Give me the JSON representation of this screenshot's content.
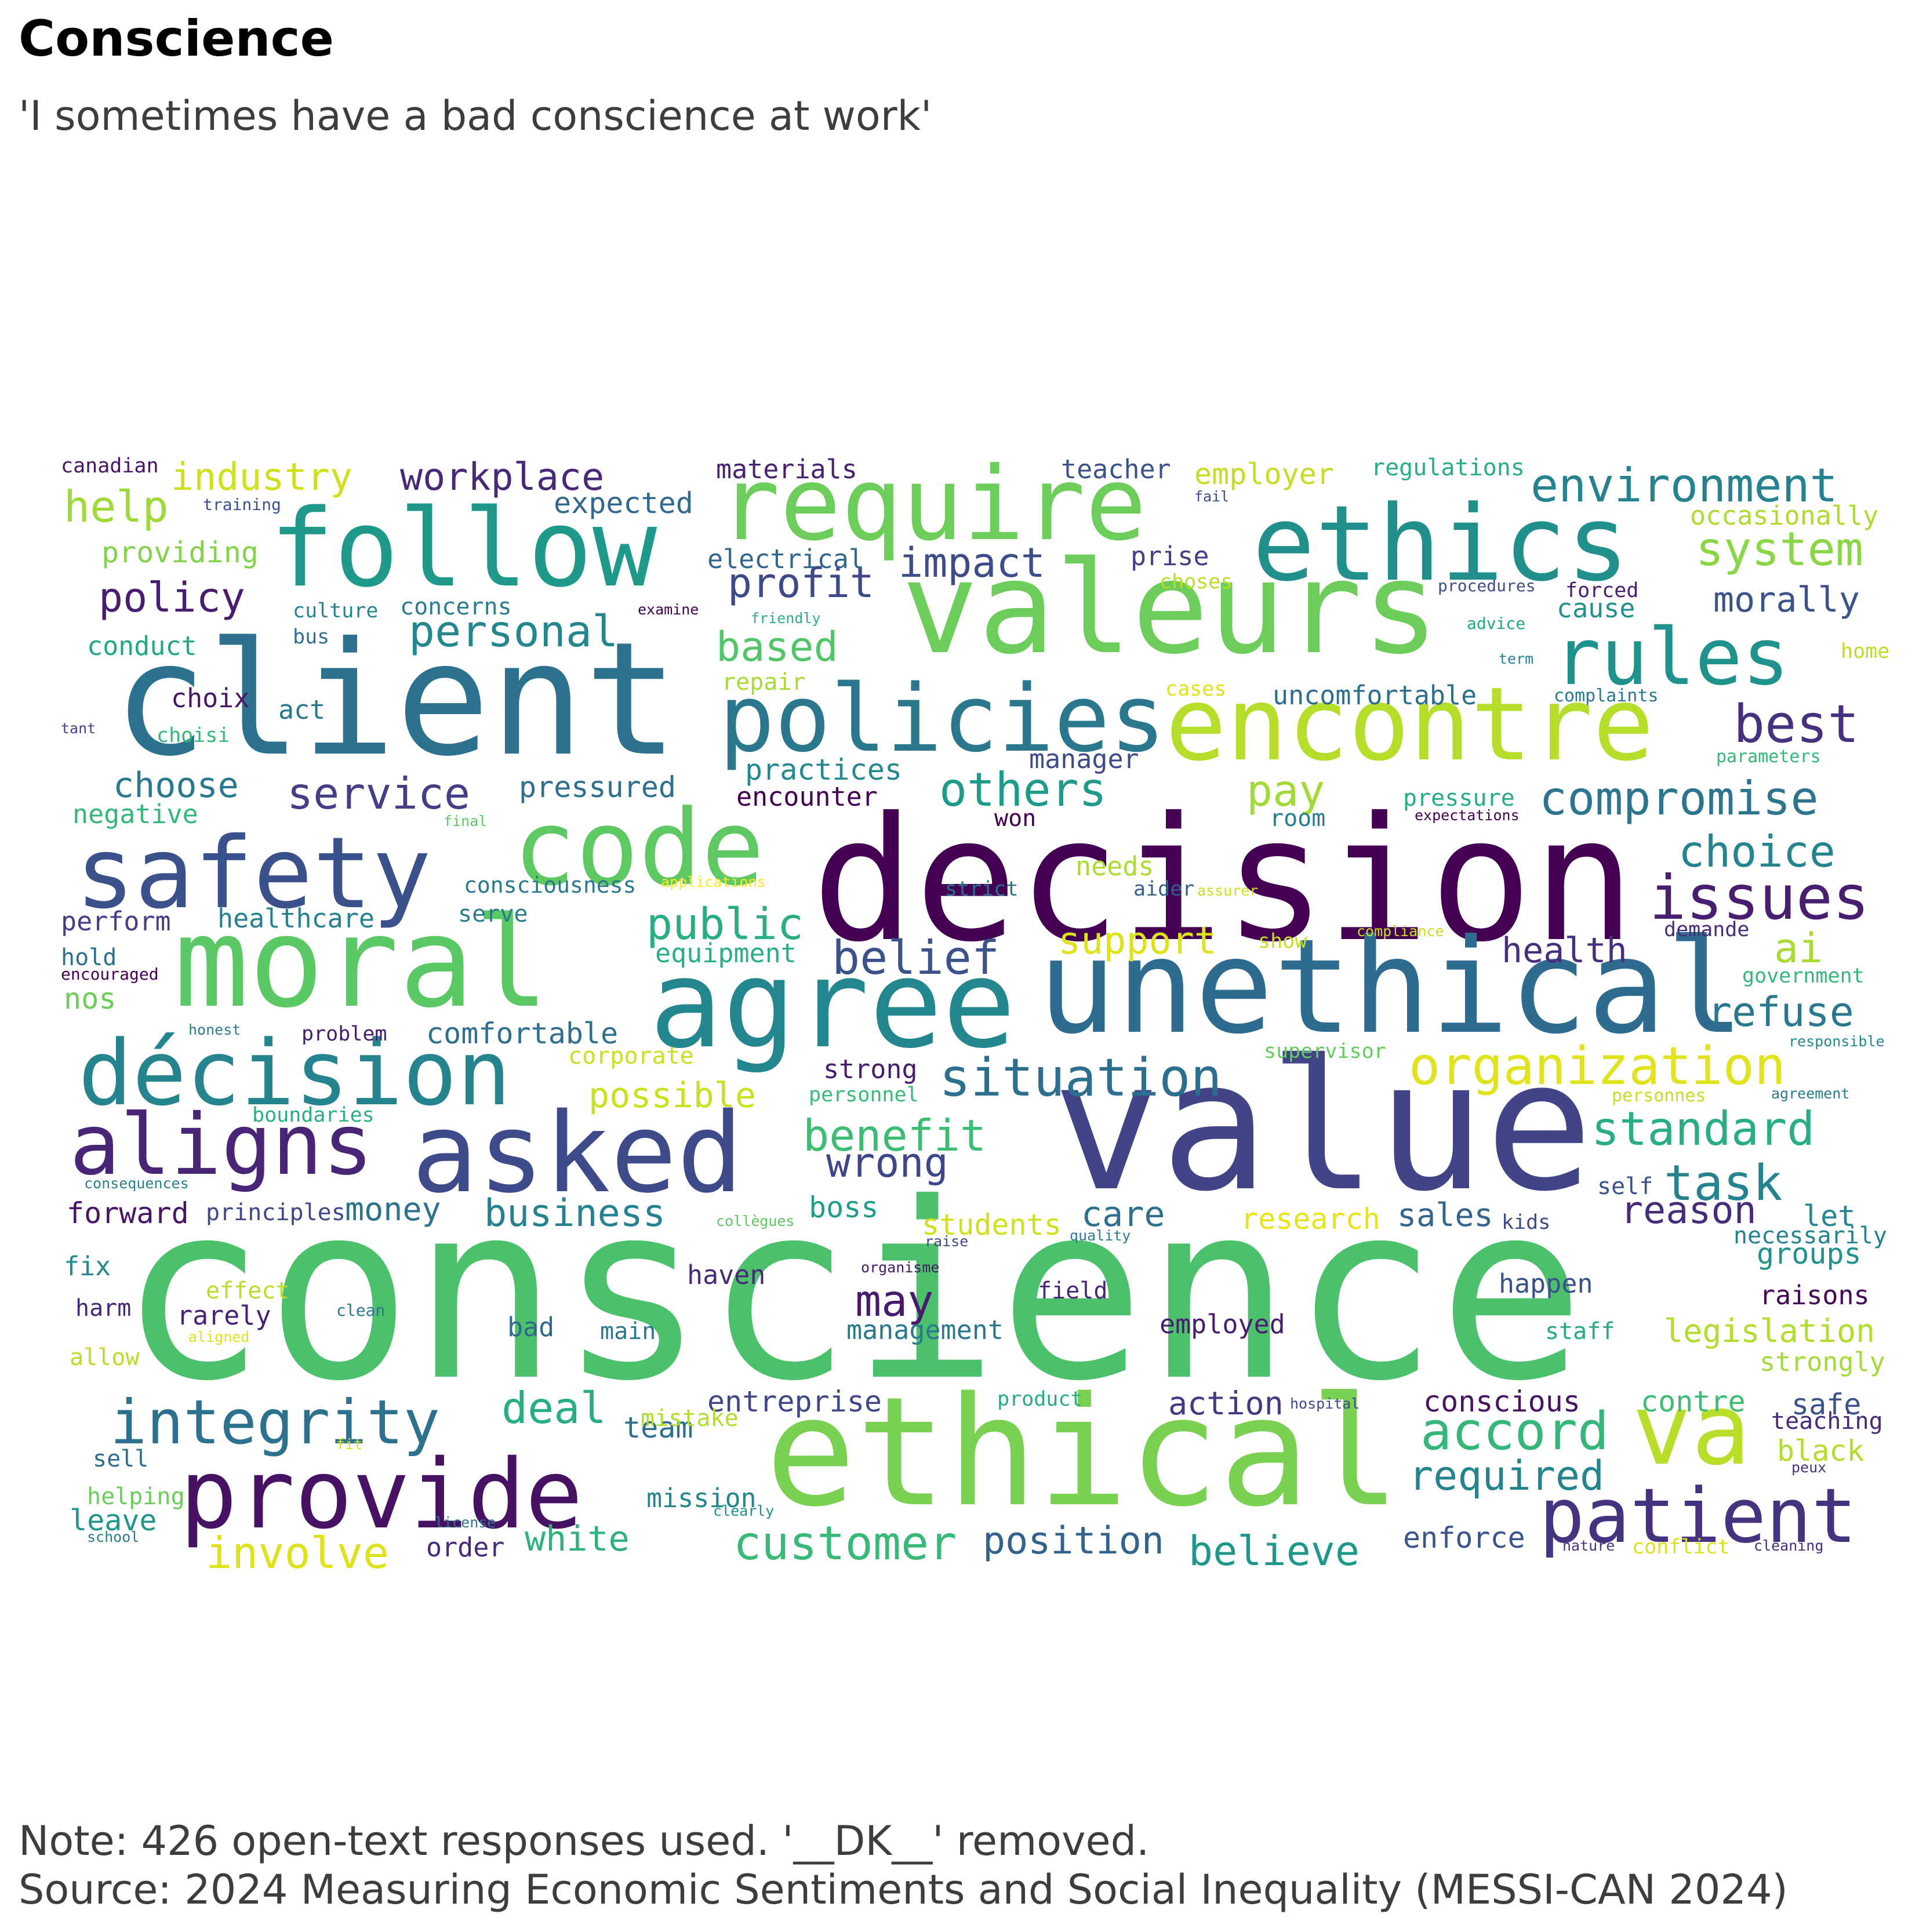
{
  "title": "Conscience",
  "subtitle": "'I sometimes have a bad conscience at work'",
  "note": "Note: 426 open-text responses used. '__DK__' removed.",
  "source": "Source: 2024 Measuring Economic Sentiments and Social Inequality (MESSI-CAN 2024)",
  "chart_data": {
    "type": "wordcloud",
    "colormap": "viridis",
    "background": "#ffffff",
    "words": [
      {
        "text": "conscience",
        "color": "#4cc16c"
      },
      {
        "text": "value",
        "color": "#414487"
      },
      {
        "text": "decision",
        "color": "#440154"
      },
      {
        "text": "ethical",
        "color": "#7ad151"
      },
      {
        "text": "client",
        "color": "#2c728e"
      },
      {
        "text": "valeurs",
        "color": "#6ccd5a"
      },
      {
        "text": "unethical",
        "color": "#2f6b8e"
      },
      {
        "text": "agree",
        "color": "#24868e"
      },
      {
        "text": "moral",
        "color": "#5ac864"
      },
      {
        "text": "follow",
        "color": "#1f9a8a"
      },
      {
        "text": "ethics",
        "color": "#21908d"
      },
      {
        "text": "require",
        "color": "#6ccd5a"
      },
      {
        "text": "encontre",
        "color": "#b5de2b"
      },
      {
        "text": "policies",
        "color": "#2a778e"
      },
      {
        "text": "code",
        "color": "#5ec962"
      },
      {
        "text": "safety",
        "color": "#3b518b"
      },
      {
        "text": "asked",
        "color": "#3e4a89"
      },
      {
        "text": "décision",
        "color": "#25848e"
      },
      {
        "text": "aligns",
        "color": "#482576"
      },
      {
        "text": "provide",
        "color": "#471164"
      },
      {
        "text": "va",
        "color": "#b8de29"
      },
      {
        "text": "patient",
        "color": "#46337f"
      },
      {
        "text": "rules",
        "color": "#20928c"
      },
      {
        "text": "integrity",
        "color": "#2c728e"
      },
      {
        "text": "issues",
        "color": "#481f70"
      },
      {
        "text": "organization",
        "color": "#e0e31e"
      },
      {
        "text": "customer",
        "color": "#38b977"
      },
      {
        "text": "accord",
        "color": "#35b779"
      },
      {
        "text": "situation",
        "color": "#2d6f8e"
      },
      {
        "text": "compromise",
        "color": "#2b758e"
      },
      {
        "text": "environment",
        "color": "#26828e"
      },
      {
        "text": "standard",
        "color": "#29af7f"
      },
      {
        "text": "others",
        "color": "#1e9b8a"
      },
      {
        "text": "public",
        "color": "#29af7f"
      },
      {
        "text": "service",
        "color": "#433e85"
      },
      {
        "text": "system",
        "color": "#8bd646"
      },
      {
        "text": "belief",
        "color": "#3b528b"
      },
      {
        "text": "personal",
        "color": "#24878e"
      },
      {
        "text": "involve",
        "color": "#dde318"
      },
      {
        "text": "best",
        "color": "#46317e"
      },
      {
        "text": "benefit",
        "color": "#3dbc74"
      },
      {
        "text": "deal",
        "color": "#28ae80"
      },
      {
        "text": "choice",
        "color": "#25848e"
      },
      {
        "text": "position",
        "color": "#33638d"
      },
      {
        "text": "task",
        "color": "#25838e"
      },
      {
        "text": "believe",
        "color": "#1f988b"
      },
      {
        "text": "required",
        "color": "#25838e"
      },
      {
        "text": "workplace",
        "color": "#482979"
      },
      {
        "text": "policy",
        "color": "#481c6e"
      },
      {
        "text": "help",
        "color": "#a0da39"
      },
      {
        "text": "industry",
        "color": "#d0e11c"
      },
      {
        "text": "based",
        "color": "#52c569"
      },
      {
        "text": "profit",
        "color": "#3e4989"
      },
      {
        "text": "impact",
        "color": "#3e4c8a"
      },
      {
        "text": "may",
        "color": "#481a6c"
      },
      {
        "text": "pay",
        "color": "#a2da37"
      },
      {
        "text": "refuse",
        "color": "#2a788e"
      },
      {
        "text": "wrong",
        "color": "#3f4788"
      },
      {
        "text": "morally",
        "color": "#3b528b"
      },
      {
        "text": "health",
        "color": "#46307e"
      },
      {
        "text": "ai",
        "color": "#a8db34"
      },
      {
        "text": "reason",
        "color": "#472c7a"
      },
      {
        "text": "choose",
        "color": "#2a788e"
      },
      {
        "text": "business",
        "color": "#26828e"
      },
      {
        "text": "money",
        "color": "#2c718e"
      },
      {
        "text": "white",
        "color": "#2db27d"
      },
      {
        "text": "support",
        "color": "#dde318"
      },
      {
        "text": "possible",
        "color": "#cae11f"
      },
      {
        "text": "care",
        "color": "#2d708e"
      },
      {
        "text": "action",
        "color": "#443983"
      },
      {
        "text": "legislation",
        "color": "#b0dd2f"
      },
      {
        "text": "conscious",
        "color": "#471365"
      },
      {
        "text": "enforce",
        "color": "#3a548c"
      },
      {
        "text": "sales",
        "color": "#32658e"
      },
      {
        "text": "safe",
        "color": "#3b528b"
      },
      {
        "text": "team",
        "color": "#2e6d8e"
      },
      {
        "text": "contre",
        "color": "#3dbc74"
      },
      {
        "text": "forward",
        "color": "#481467"
      },
      {
        "text": "healthcare",
        "color": "#26818e"
      },
      {
        "text": "pressured",
        "color": "#2e6e8e"
      },
      {
        "text": "practices",
        "color": "#23898e"
      },
      {
        "text": "equipment",
        "color": "#2ab07f"
      },
      {
        "text": "students",
        "color": "#d0e11c"
      },
      {
        "text": "research",
        "color": "#e7e419"
      },
      {
        "text": "entreprise",
        "color": "#3f4788"
      },
      {
        "text": "employer",
        "color": "#c2df23"
      },
      {
        "text": "expected",
        "color": "#31688e"
      },
      {
        "text": "electrical",
        "color": "#31678e"
      },
      {
        "text": "providing",
        "color": "#84d44b"
      },
      {
        "text": "conduct",
        "color": "#22a884"
      },
      {
        "text": "negative",
        "color": "#35b779"
      },
      {
        "text": "perform",
        "color": "#433e85"
      },
      {
        "text": "comfortable",
        "color": "#2e6e8e"
      },
      {
        "text": "corporate",
        "color": "#c8e020"
      },
      {
        "text": "boundaries",
        "color": "#29af7f"
      },
      {
        "text": "principles",
        "color": "#3f4889"
      },
      {
        "text": "groups",
        "color": "#21918c"
      },
      {
        "text": "raisons",
        "color": "#450559"
      },
      {
        "text": "strongly",
        "color": "#a5db36"
      },
      {
        "text": "teaching",
        "color": "#482878"
      },
      {
        "text": "black",
        "color": "#b2dd2d"
      },
      {
        "text": "mission",
        "color": "#25858e"
      },
      {
        "text": "mistake",
        "color": "#b2dd2d"
      },
      {
        "text": "leave",
        "color": "#1f958b"
      },
      {
        "text": "order",
        "color": "#472a7a"
      },
      {
        "text": "helping",
        "color": "#6ccd5a"
      },
      {
        "text": "sell",
        "color": "#2e6e8e"
      },
      {
        "text": "management",
        "color": "#2a788e"
      },
      {
        "text": "employed",
        "color": "#481c6e"
      },
      {
        "text": "happen",
        "color": "#3b518b"
      },
      {
        "text": "staff",
        "color": "#23a983"
      },
      {
        "text": "rarely",
        "color": "#482173"
      },
      {
        "text": "harm",
        "color": "#482677"
      },
      {
        "text": "allow",
        "color": "#bade28"
      },
      {
        "text": "effect",
        "color": "#b8de29"
      },
      {
        "text": "bad",
        "color": "#31688e"
      },
      {
        "text": "main",
        "color": "#2a788e"
      },
      {
        "text": "haven",
        "color": "#482979"
      },
      {
        "text": "field",
        "color": "#482677"
      },
      {
        "text": "fix",
        "color": "#23898e"
      },
      {
        "text": "boss",
        "color": "#1f9e89"
      },
      {
        "text": "kids",
        "color": "#3e4989"
      },
      {
        "text": "let",
        "color": "#24868e"
      },
      {
        "text": "necessarily",
        "color": "#26828e"
      },
      {
        "text": "self",
        "color": "#3b528b"
      },
      {
        "text": "hold",
        "color": "#2e6f8e"
      },
      {
        "text": "nos",
        "color": "#6ccd5a"
      },
      {
        "text": "encouraged",
        "color": "#440154"
      },
      {
        "text": "problem",
        "color": "#481b6d"
      },
      {
        "text": "strong",
        "color": "#481d6f"
      },
      {
        "text": "supervisor",
        "color": "#63cb5f"
      },
      {
        "text": "personnel",
        "color": "#38b977"
      },
      {
        "text": "serve",
        "color": "#287c8e"
      },
      {
        "text": "consciousness",
        "color": "#2a778e"
      },
      {
        "text": "needs",
        "color": "#addc30"
      },
      {
        "text": "aider",
        "color": "#35608d"
      },
      {
        "text": "strict",
        "color": "#2c728e"
      },
      {
        "text": "won",
        "color": "#440154"
      },
      {
        "text": "encounter",
        "color": "#440154"
      },
      {
        "text": "manager",
        "color": "#3e4a89"
      },
      {
        "text": "choix",
        "color": "#481567"
      },
      {
        "text": "act",
        "color": "#2a788e"
      },
      {
        "text": "choisi",
        "color": "#35b779"
      },
      {
        "text": "culture",
        "color": "#25848e"
      },
      {
        "text": "concerns",
        "color": "#287d8e"
      },
      {
        "text": "bus",
        "color": "#2e6f8e"
      },
      {
        "text": "repair",
        "color": "#a8db34"
      },
      {
        "text": "uncomfortable",
        "color": "#2e6e8e"
      },
      {
        "text": "pressure",
        "color": "#26ad81"
      },
      {
        "text": "room",
        "color": "#277f8e"
      },
      {
        "text": "demande",
        "color": "#472c7a"
      },
      {
        "text": "government",
        "color": "#35b779"
      },
      {
        "text": "materials",
        "color": "#482173"
      },
      {
        "text": "teacher",
        "color": "#3b528b"
      },
      {
        "text": "regulations",
        "color": "#29af7f"
      },
      {
        "text": "occasionally",
        "color": "#addc30"
      },
      {
        "text": "canadian",
        "color": "#481467"
      },
      {
        "text": "training",
        "color": "#3b528b"
      },
      {
        "text": "prise",
        "color": "#433e85"
      },
      {
        "text": "choses",
        "color": "#b8de29"
      },
      {
        "text": "cause",
        "color": "#21918c"
      },
      {
        "text": "forced",
        "color": "#481d6f"
      },
      {
        "text": "procedures",
        "color": "#3e4c8a"
      },
      {
        "text": "examine",
        "color": "#440154"
      },
      {
        "text": "friendly",
        "color": "#2ab07f"
      },
      {
        "text": "advice",
        "color": "#22a785"
      },
      {
        "text": "term",
        "color": "#26828e"
      },
      {
        "text": "home",
        "color": "#bade28"
      },
      {
        "text": "complaints",
        "color": "#2a788e"
      },
      {
        "text": "cases",
        "color": "#dde318"
      },
      {
        "text": "parameters",
        "color": "#35b779"
      },
      {
        "text": "expectations",
        "color": "#440154"
      },
      {
        "text": "tant",
        "color": "#404588"
      },
      {
        "text": "final",
        "color": "#5ec962"
      },
      {
        "text": "applications",
        "color": "#fde725"
      },
      {
        "text": "assurer",
        "color": "#cae11f"
      },
      {
        "text": "compliance",
        "color": "#c8e020"
      },
      {
        "text": "show",
        "color": "#c2df23"
      },
      {
        "text": "honest",
        "color": "#287d8e"
      },
      {
        "text": "responsible",
        "color": "#23898e"
      },
      {
        "text": "personnes",
        "color": "#c2df23"
      },
      {
        "text": "agreement",
        "color": "#287c8e"
      },
      {
        "text": "consequences",
        "color": "#26828e"
      },
      {
        "text": "collègues",
        "color": "#5ec962"
      },
      {
        "text": "raise",
        "color": "#3f4889"
      },
      {
        "text": "quality",
        "color": "#287d8e"
      },
      {
        "text": "organisme",
        "color": "#481668"
      },
      {
        "text": "clean",
        "color": "#2a788e"
      },
      {
        "text": "aligned",
        "color": "#dde318"
      },
      {
        "text": "product",
        "color": "#26ad81"
      },
      {
        "text": "hospital",
        "color": "#3e4a89"
      },
      {
        "text": "fit",
        "color": "#d5e21a"
      },
      {
        "text": "license",
        "color": "#2c728e"
      },
      {
        "text": "clearly",
        "color": "#21908d"
      },
      {
        "text": "school",
        "color": "#287c8e"
      },
      {
        "text": "peux",
        "color": "#46337f"
      },
      {
        "text": "nature",
        "color": "#453581"
      },
      {
        "text": "conflict",
        "color": "#dde318"
      },
      {
        "text": "cleaning",
        "color": "#472d7b"
      },
      {
        "text": "fail",
        "color": "#3b518b"
      }
    ]
  }
}
